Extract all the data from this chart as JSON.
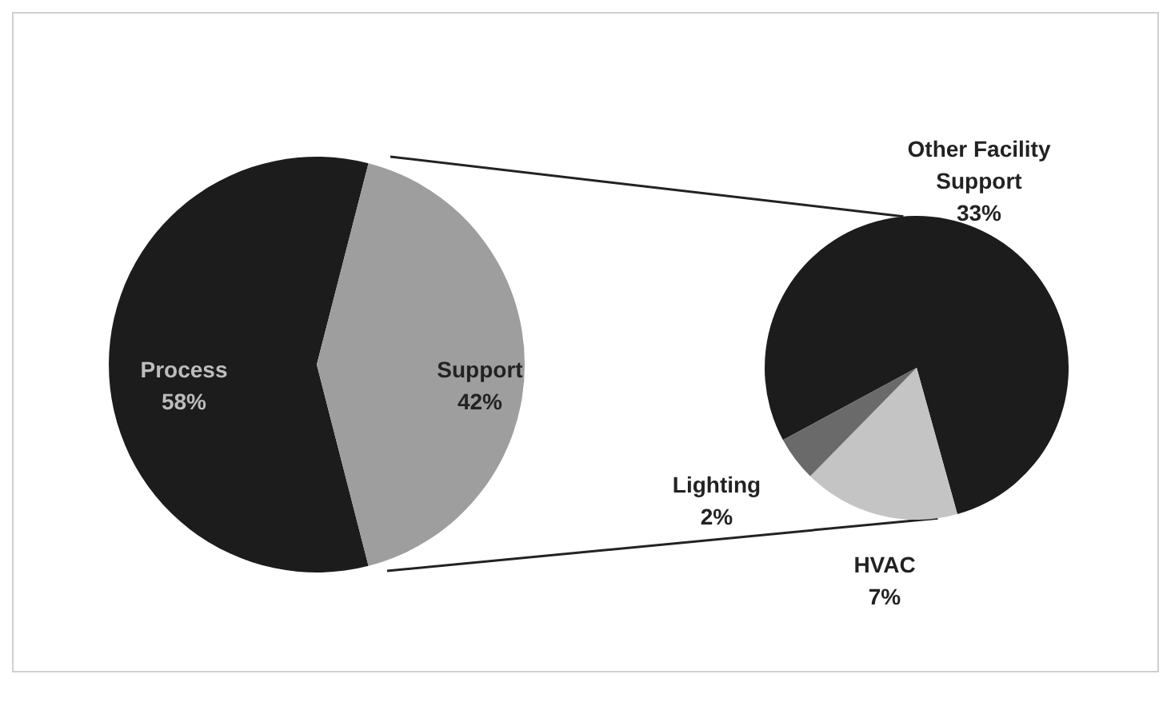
{
  "chart_data": [
    {
      "type": "pie",
      "categories": [
        "Process",
        "Support"
      ],
      "values": [
        58,
        42
      ],
      "colors": [
        "#1c1c1c",
        "#9e9e9e"
      ],
      "value_labels": [
        "58%",
        "42%"
      ]
    },
    {
      "type": "pie",
      "categories": [
        "Other Facility Support",
        "HVAC",
        "Lighting"
      ],
      "values": [
        33,
        7,
        2
      ],
      "colors": [
        "#1c1c1c",
        "#c4c4c4",
        "#6a6a6a"
      ],
      "value_labels": [
        "33%",
        "7%",
        "2%"
      ]
    }
  ]
}
